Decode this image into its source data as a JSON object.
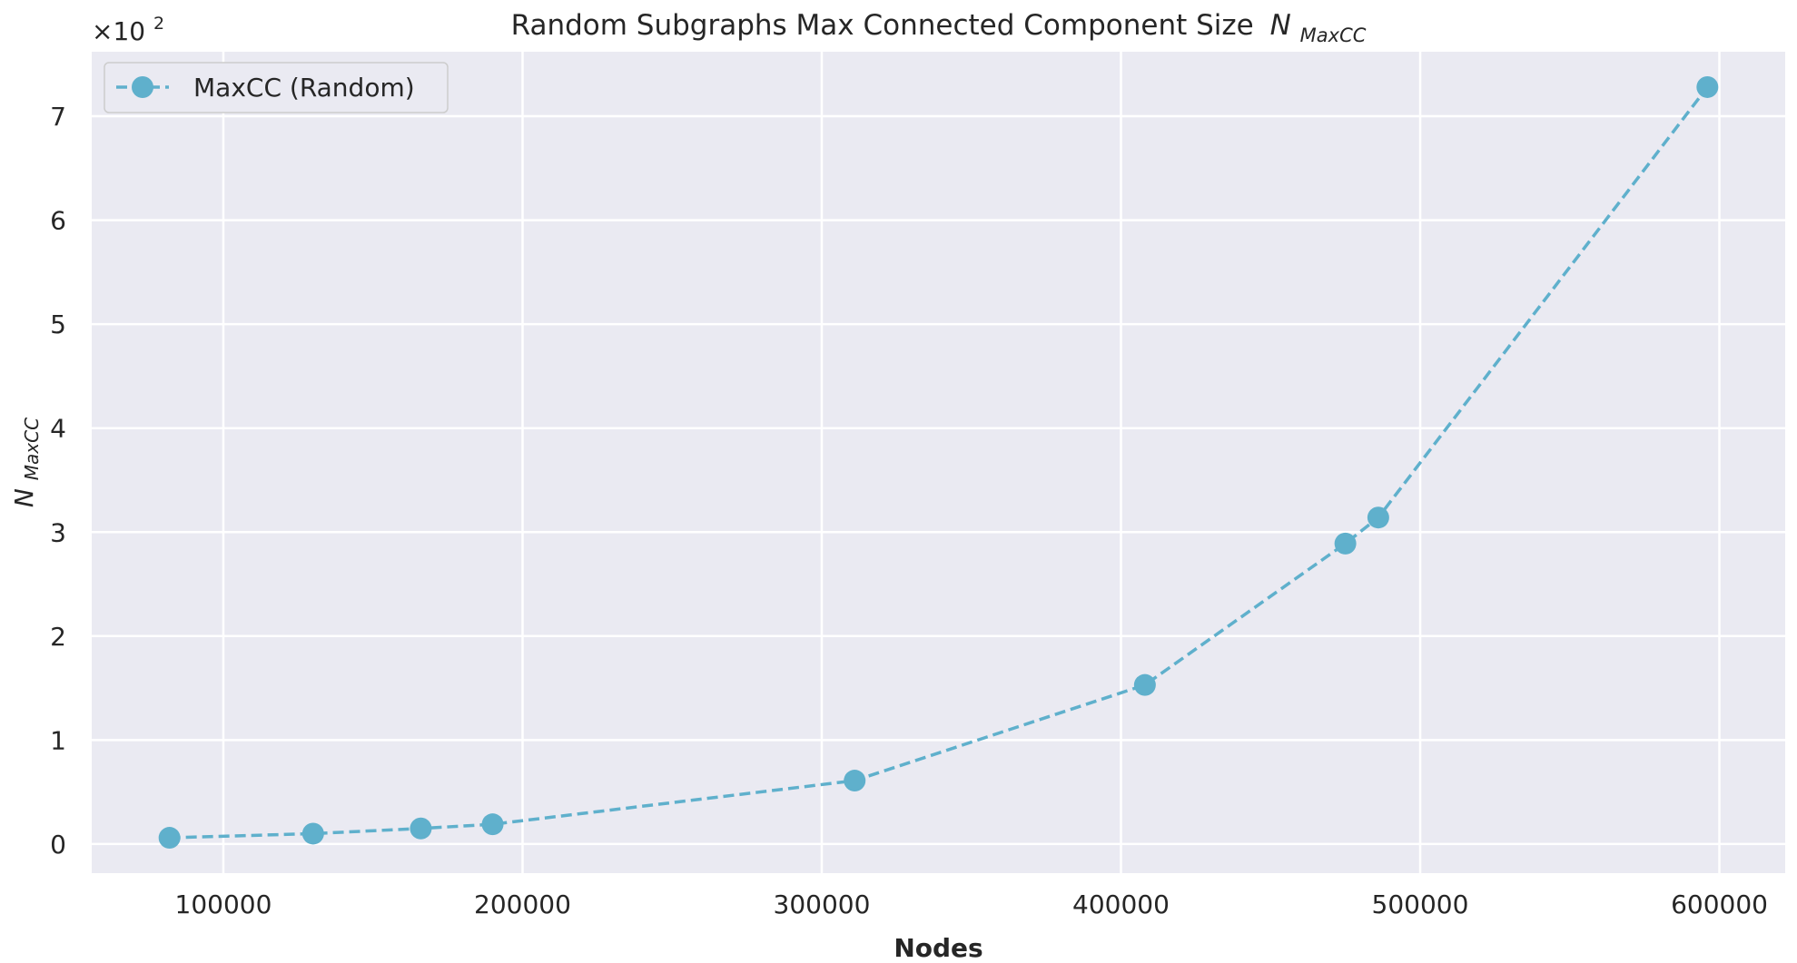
{
  "chart_data": {
    "type": "line",
    "title": "Random Subgraphs Max Connected Component Size",
    "title_symbol": "N",
    "title_symbol_sub": "MaxCC",
    "xlabel": "Nodes",
    "ylabel_symbol": "N",
    "ylabel_sub": "MaxCC",
    "y_offset_text": "×10",
    "y_offset_exp": "2",
    "xlim": [
      56000,
      622000
    ],
    "ylim": [
      -0.28,
      7.62
    ],
    "xticks": [
      100000,
      200000,
      300000,
      400000,
      500000,
      600000
    ],
    "yticks": [
      0,
      1,
      2,
      3,
      4,
      5,
      6,
      7
    ],
    "grid": true,
    "legend_position": "top-left",
    "series": [
      {
        "name": "MaxCC (Random)",
        "color": "#5fb0cc",
        "line_style": "dashed",
        "marker": "circle",
        "x": [
          82000,
          130000,
          166000,
          190000,
          311000,
          408000,
          475000,
          486000,
          596000
        ],
        "y": [
          0.06,
          0.1,
          0.15,
          0.19,
          0.61,
          1.53,
          2.89,
          3.14,
          7.28
        ]
      }
    ]
  }
}
